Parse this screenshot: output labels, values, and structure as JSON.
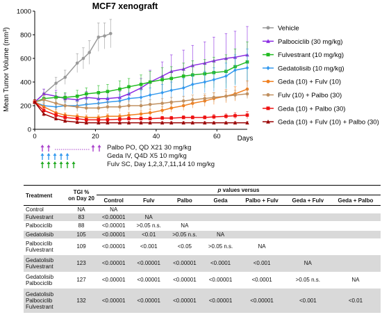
{
  "chart_data": {
    "type": "line",
    "title": "MCF7 xenograft",
    "xlabel": "Days",
    "ylabel": "Mean Tumor Volume (mm³)",
    "xlim": [
      0,
      70
    ],
    "ylim": [
      0,
      1000
    ],
    "xticks": [
      "0",
      "20",
      "40",
      "60"
    ],
    "yticks": [
      "0",
      "200",
      "400",
      "600",
      "800",
      "1000"
    ],
    "legend_position": "right",
    "series": [
      {
        "name": "Vehicle",
        "color": "#999999",
        "marker": "circle",
        "x": [
          0,
          3,
          7,
          10,
          14,
          16,
          18,
          21,
          23,
          25
        ],
        "y": [
          230,
          300,
          390,
          440,
          560,
          600,
          650,
          780,
          790,
          810
        ],
        "err": [
          20,
          40,
          50,
          60,
          80,
          90,
          100,
          120,
          110,
          120
        ]
      },
      {
        "name": "Palbociclib (30 mg/kg)",
        "color": "#8a2be2",
        "marker": "triangle",
        "x": [
          0,
          3,
          7,
          10,
          14,
          17,
          21,
          24,
          28,
          31,
          35,
          38,
          42,
          45,
          49,
          52,
          56,
          59,
          63,
          66,
          70
        ],
        "y": [
          230,
          300,
          280,
          260,
          250,
          270,
          260,
          260,
          270,
          300,
          350,
          400,
          450,
          490,
          510,
          540,
          560,
          580,
          600,
          610,
          630
        ],
        "err": [
          20,
          40,
          50,
          40,
          40,
          50,
          50,
          50,
          50,
          60,
          80,
          100,
          120,
          140,
          160,
          170,
          180,
          200,
          210,
          220,
          240
        ]
      },
      {
        "name": "Fulvestrant (10 mg/kg)",
        "color": "#22bb22",
        "marker": "square",
        "x": [
          0,
          3,
          7,
          10,
          14,
          17,
          21,
          24,
          28,
          31,
          35,
          38,
          42,
          45,
          49,
          52,
          56,
          59,
          63,
          66,
          70
        ],
        "y": [
          230,
          260,
          270,
          270,
          280,
          300,
          310,
          320,
          340,
          360,
          380,
          400,
          420,
          430,
          450,
          460,
          470,
          480,
          490,
          530,
          570
        ],
        "err": [
          20,
          30,
          40,
          40,
          50,
          50,
          60,
          60,
          70,
          70,
          80,
          90,
          100,
          100,
          110,
          120,
          120,
          130,
          140,
          150,
          170
        ]
      },
      {
        "name": "Gedatolisib (10 mg/kg)",
        "color": "#3399ee",
        "marker": "diamond",
        "x": [
          0,
          3,
          7,
          10,
          14,
          17,
          21,
          24,
          28,
          31,
          35,
          38,
          42,
          45,
          49,
          52,
          56,
          59,
          63,
          66,
          70
        ],
        "y": [
          230,
          200,
          190,
          200,
          200,
          210,
          220,
          230,
          240,
          260,
          270,
          290,
          310,
          330,
          350,
          380,
          400,
          420,
          450,
          500,
          520
        ],
        "err": [
          20,
          30,
          30,
          30,
          40,
          40,
          40,
          40,
          50,
          50,
          60,
          60,
          70,
          70,
          80,
          80,
          90,
          100,
          110,
          130,
          160
        ]
      },
      {
        "name": "Geda  (10) + Fulv (10)",
        "color": "#f07f1f",
        "marker": "circle",
        "x": [
          0,
          3,
          7,
          10,
          14,
          17,
          21,
          24,
          28,
          31,
          35,
          38,
          42,
          45,
          49,
          52,
          56,
          59,
          63,
          66,
          70
        ],
        "y": [
          230,
          190,
          140,
          120,
          110,
          100,
          100,
          110,
          110,
          120,
          130,
          140,
          160,
          180,
          200,
          220,
          240,
          260,
          280,
          300,
          340
        ],
        "err": [
          20,
          30,
          30,
          20,
          20,
          20,
          20,
          20,
          20,
          25,
          25,
          30,
          30,
          35,
          40,
          40,
          45,
          50,
          55,
          60,
          70
        ]
      },
      {
        "name": "Fulv (10) + Palbo (30)",
        "color": "#c09060",
        "marker": "circle",
        "x": [
          0,
          3,
          7,
          10,
          14,
          17,
          21,
          24,
          28,
          31,
          35,
          38,
          42,
          45,
          49,
          52,
          56,
          59,
          63,
          66,
          70
        ],
        "y": [
          230,
          250,
          220,
          200,
          190,
          180,
          180,
          190,
          190,
          200,
          200,
          210,
          220,
          230,
          240,
          250,
          260,
          270,
          280,
          290,
          300
        ],
        "err": [
          20,
          40,
          40,
          40,
          40,
          40,
          40,
          40,
          40,
          40,
          40,
          40,
          40,
          40,
          40,
          40,
          40,
          40,
          40,
          40,
          40
        ]
      },
      {
        "name": "Geda (10) + Palbo (30)",
        "color": "#ee1111",
        "marker": "square",
        "x": [
          0,
          3,
          7,
          10,
          14,
          17,
          21,
          24,
          28,
          31,
          35,
          38,
          42,
          45,
          49,
          52,
          56,
          59,
          63,
          66,
          70
        ],
        "y": [
          230,
          160,
          120,
          100,
          90,
          80,
          80,
          80,
          85,
          90,
          90,
          90,
          95,
          95,
          100,
          100,
          100,
          105,
          110,
          115,
          120
        ],
        "err": [
          20,
          25,
          20,
          20,
          15,
          15,
          15,
          15,
          15,
          15,
          15,
          15,
          15,
          15,
          15,
          15,
          15,
          20,
          20,
          25,
          30
        ]
      },
      {
        "name": "Geda (10) + Fulv (10) + Palbo (30)",
        "color": "#990000",
        "marker": "triangle",
        "x": [
          0,
          3,
          7,
          10,
          14,
          17,
          21,
          24,
          28,
          31,
          35,
          38,
          42,
          45,
          49,
          52,
          56,
          59,
          63,
          66,
          70
        ],
        "y": [
          230,
          130,
          90,
          70,
          60,
          55,
          55,
          55,
          55,
          55,
          55,
          55,
          55,
          55,
          55,
          55,
          55,
          55,
          55,
          55,
          55
        ],
        "err": [
          20,
          20,
          15,
          10,
          10,
          10,
          10,
          10,
          10,
          10,
          10,
          10,
          10,
          10,
          10,
          10,
          10,
          10,
          10,
          10,
          10
        ]
      }
    ]
  },
  "dosing": [
    {
      "text": "Palbo PO, QD X21 30 mg/kg",
      "color": "#aa44cc",
      "arrows": 2,
      "end_arrows": 2
    },
    {
      "text": "Geda IV, Q4D X5 10 mg/kg",
      "color": "#3399ee",
      "arrows": 5,
      "end_arrows": 0
    },
    {
      "text": "Fulv SC, Day 1,2,3,7,11,14 10 mg/kg",
      "color": "#22aa22",
      "arrows": 6,
      "end_arrows": 0
    }
  ],
  "table": {
    "col_treatment": "Treatment",
    "col_tgi_1": "TGI %",
    "col_tgi_2": "on Day 20",
    "pvalues_label_p": "p",
    "pvalues_label_rest": " values versus",
    "columns": [
      "Control",
      "Fulv",
      "Palbo",
      "Geda",
      "Palbo + Fulv",
      "Geda + Fulv",
      "Geda + Palbo"
    ],
    "rows": [
      {
        "treatment": [
          "Control"
        ],
        "tgi": "NA",
        "shade": false,
        "values": [
          "NA",
          "",
          "",
          "",
          "",
          "",
          ""
        ]
      },
      {
        "treatment": [
          "Fulvestrant"
        ],
        "tgi": "83",
        "shade": true,
        "values": [
          "<0.00001",
          "NA",
          "",
          "",
          "",
          "",
          ""
        ]
      },
      {
        "treatment": [
          "Palbociclib"
        ],
        "tgi": "88",
        "shade": false,
        "values": [
          "<0.00001",
          ">0.05 n.s.",
          "NA",
          "",
          "",
          "",
          ""
        ]
      },
      {
        "treatment": [
          "Gedatolisib"
        ],
        "tgi": "105",
        "shade": true,
        "values": [
          "<0.00001",
          "<0.01",
          ">0.05 n.s.",
          "NA",
          "",
          "",
          ""
        ]
      },
      {
        "treatment": [
          "Palbociclib",
          "Fulvestrant"
        ],
        "tgi": "109",
        "shade": false,
        "values": [
          "<0.00001",
          "<0.001",
          "<0.05",
          ">0.05 n.s.",
          "NA",
          "",
          ""
        ]
      },
      {
        "treatment": [
          "Gedatolisib",
          "Fulvestrant"
        ],
        "tgi": "123",
        "shade": true,
        "values": [
          "<0.00001",
          "<0.00001",
          "<0.00001",
          "<0.0001",
          "<0.001",
          "NA",
          ""
        ]
      },
      {
        "treatment": [
          "Gedatolisib",
          "Palbociclib"
        ],
        "tgi": "127",
        "shade": false,
        "values": [
          "<0.00001",
          "<0.00001",
          "<0.00001",
          "<0.00001",
          "<0.0001",
          ">0.05 n.s.",
          "NA"
        ]
      },
      {
        "treatment": [
          "Gedatolisib",
          "Palbociclib",
          "Fulvestrant"
        ],
        "tgi": "132",
        "shade": true,
        "values": [
          "<0.00001",
          "<0.00001",
          "<0.00001",
          "<0.00001",
          "<0.00001",
          "<0.001",
          "<0.01"
        ]
      }
    ]
  }
}
